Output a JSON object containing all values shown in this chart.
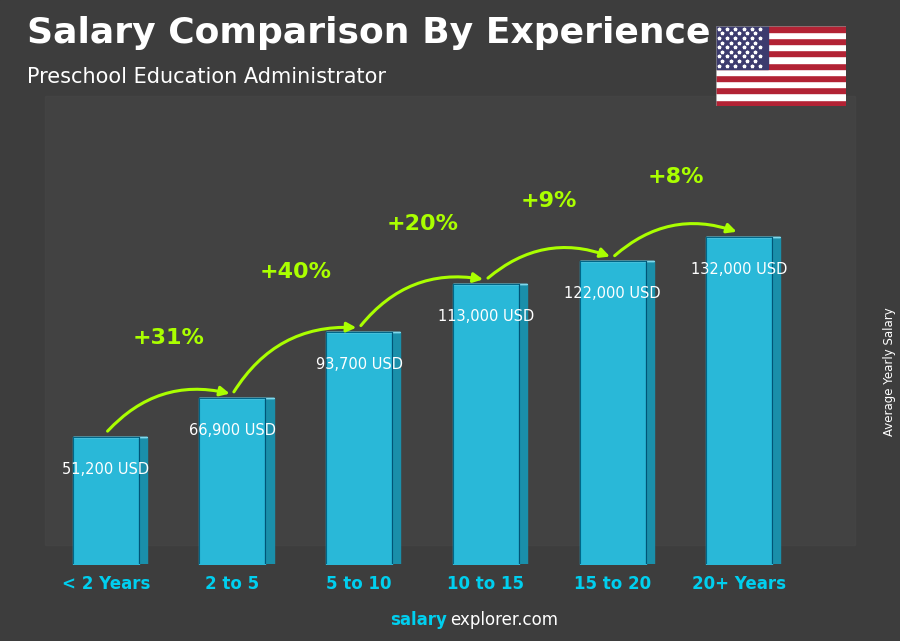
{
  "title": "Salary Comparison By Experience",
  "subtitle": "Preschool Education Administrator",
  "categories": [
    "< 2 Years",
    "2 to 5",
    "5 to 10",
    "10 to 15",
    "15 to 20",
    "20+ Years"
  ],
  "values": [
    51200,
    66900,
    93700,
    113000,
    122000,
    132000
  ],
  "value_labels": [
    "51,200 USD",
    "66,900 USD",
    "93,700 USD",
    "113,000 USD",
    "122,000 USD",
    "132,000 USD"
  ],
  "pct_labels": [
    "+31%",
    "+40%",
    "+20%",
    "+9%",
    "+8%"
  ],
  "bar_color_face": "#29B8D8",
  "bar_color_top": "#7FD8EC",
  "bar_color_side": "#1A8FAA",
  "background_color": "#3a3a3a",
  "title_color": "#FFFFFF",
  "subtitle_color": "#FFFFFF",
  "label_color": "#FFFFFF",
  "pct_color": "#AAFF00",
  "tick_color": "#00CFEF",
  "ylabel": "Average Yearly Salary",
  "title_fontsize": 26,
  "subtitle_fontsize": 15,
  "value_fontsize": 10.5,
  "pct_fontsize": 16,
  "tick_fontsize": 12,
  "ylim": [
    0,
    155000
  ],
  "figsize": [
    9.0,
    6.41
  ],
  "dpi": 100
}
